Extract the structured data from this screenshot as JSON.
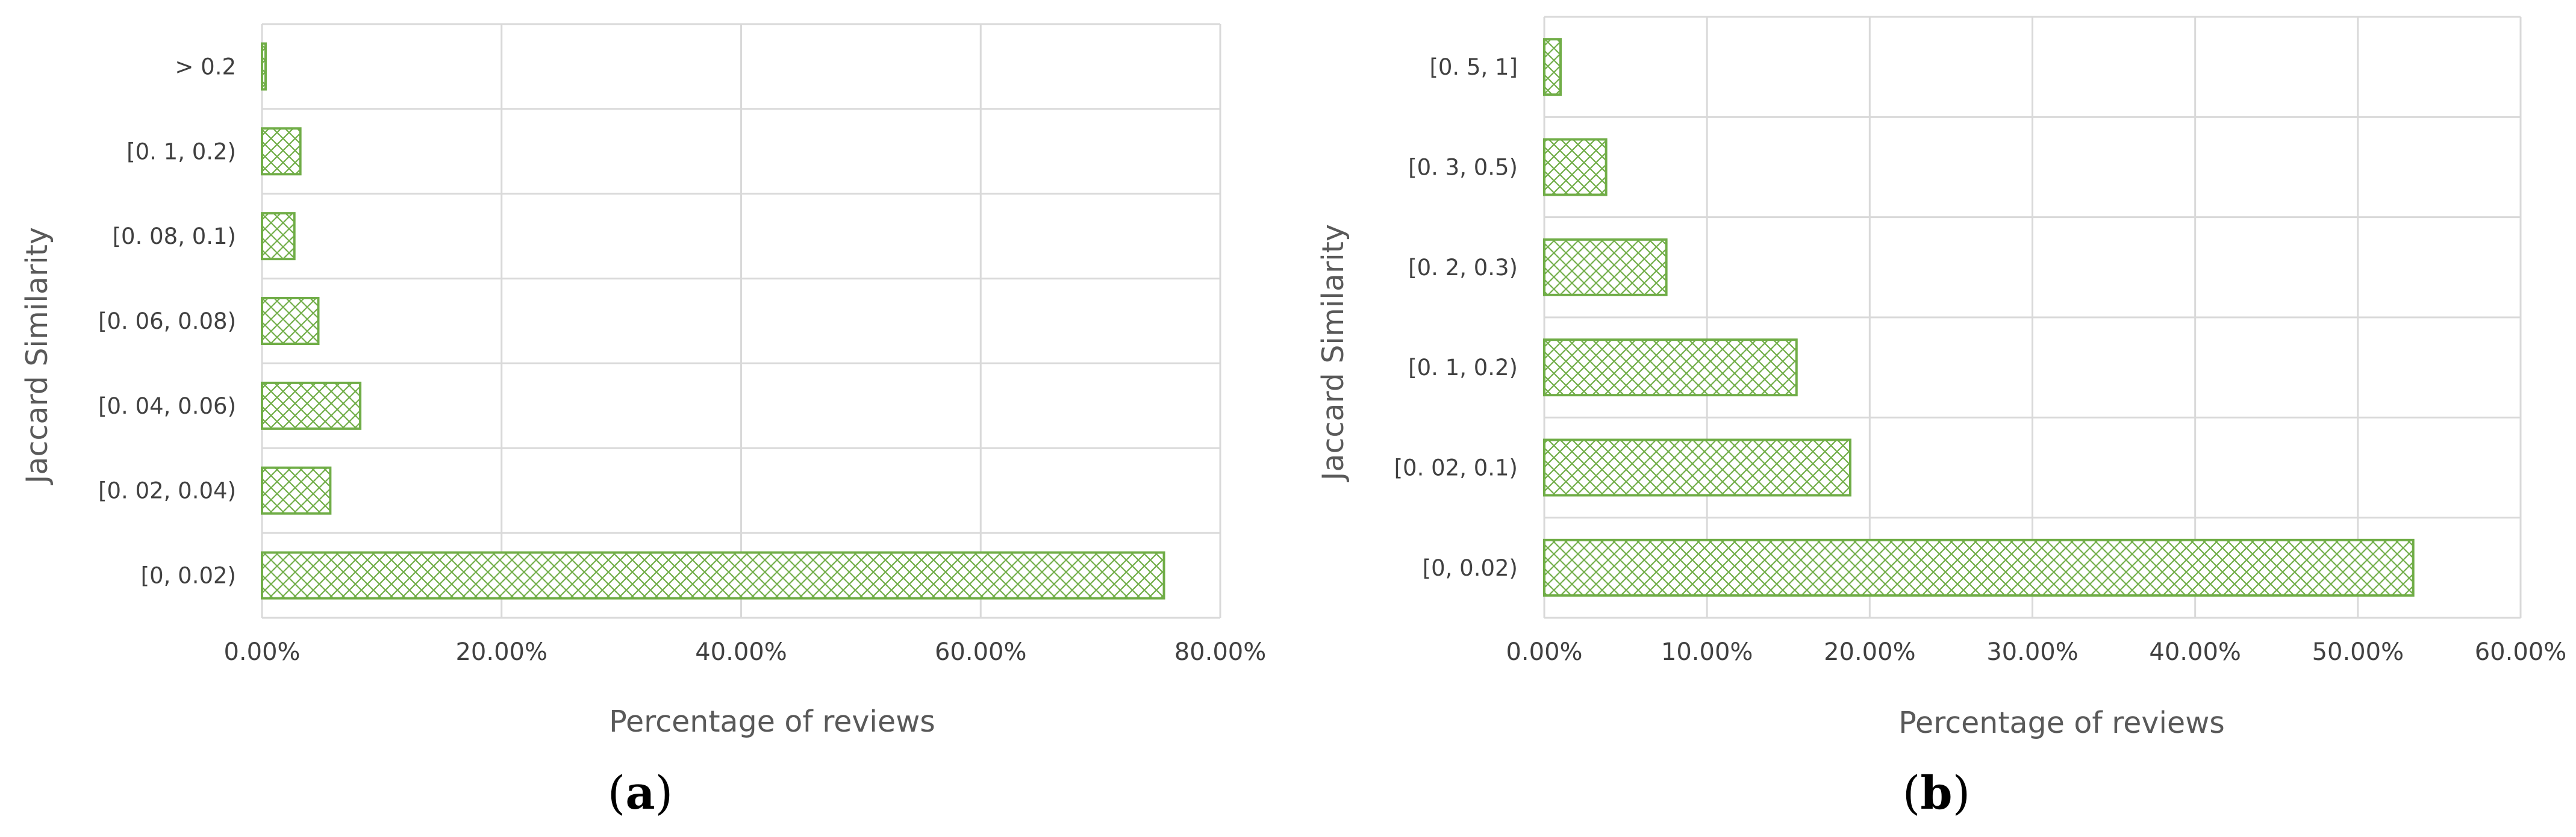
{
  "colors": {
    "bar_stroke": "#70ad47",
    "grid": "#d9d9d9",
    "text": "#404040",
    "axis_title": "#595959"
  },
  "chart_data": [
    {
      "type": "bar",
      "orientation": "horizontal",
      "panel_label": "a",
      "categories": [
        "[0, 0.02)",
        "[0.02, 0.04)",
        "[0.04, 0.06)",
        "[0.06, 0.08)",
        "[0.08, 0.1)",
        "[0.1, 0.2)",
        "> 0.2"
      ],
      "category_labels": [
        "[0, 0.02)",
        "[0. 02, 0.04)",
        "[0. 04, 0.06)",
        "[0. 06, 0.08)",
        "[0. 08, 0.1)",
        "[0. 1, 0.2)",
        "> 0.2"
      ],
      "values": [
        75.3,
        5.7,
        8.2,
        4.7,
        2.7,
        3.2,
        0.3
      ],
      "xlabel": "Percentage of reviews",
      "ylabel": "Jaccard Similarity",
      "xlim": [
        0,
        80
      ],
      "xticks": [
        "0.00%",
        "20.00%",
        "40.00%",
        "60.00%",
        "80.00%"
      ],
      "grid": true,
      "pattern": "crosshatch"
    },
    {
      "type": "bar",
      "orientation": "horizontal",
      "panel_label": "b",
      "categories": [
        "[0, 0.02)",
        "[0.02, 0.1)",
        "[0.1, 0.2)",
        "[0.2, 0.3)",
        "[0.3, 0.5)",
        "[0.5, 1]"
      ],
      "category_labels": [
        "[0, 0.02)",
        "[0. 02, 0.1)",
        "[0. 1, 0.2)",
        "[0. 2, 0.3)",
        "[0. 3, 0.5)",
        "[0. 5, 1]"
      ],
      "values": [
        53.4,
        18.8,
        15.5,
        7.5,
        3.8,
        1.0
      ],
      "xlabel": "Percentage of reviews",
      "ylabel": "Jaccard Similarity",
      "xlim": [
        0,
        60
      ],
      "xticks": [
        "0.00%",
        "10.00%",
        "20.00%",
        "30.00%",
        "40.00%",
        "50.00%",
        "60.00%"
      ],
      "grid": true,
      "pattern": "crosshatch"
    }
  ]
}
